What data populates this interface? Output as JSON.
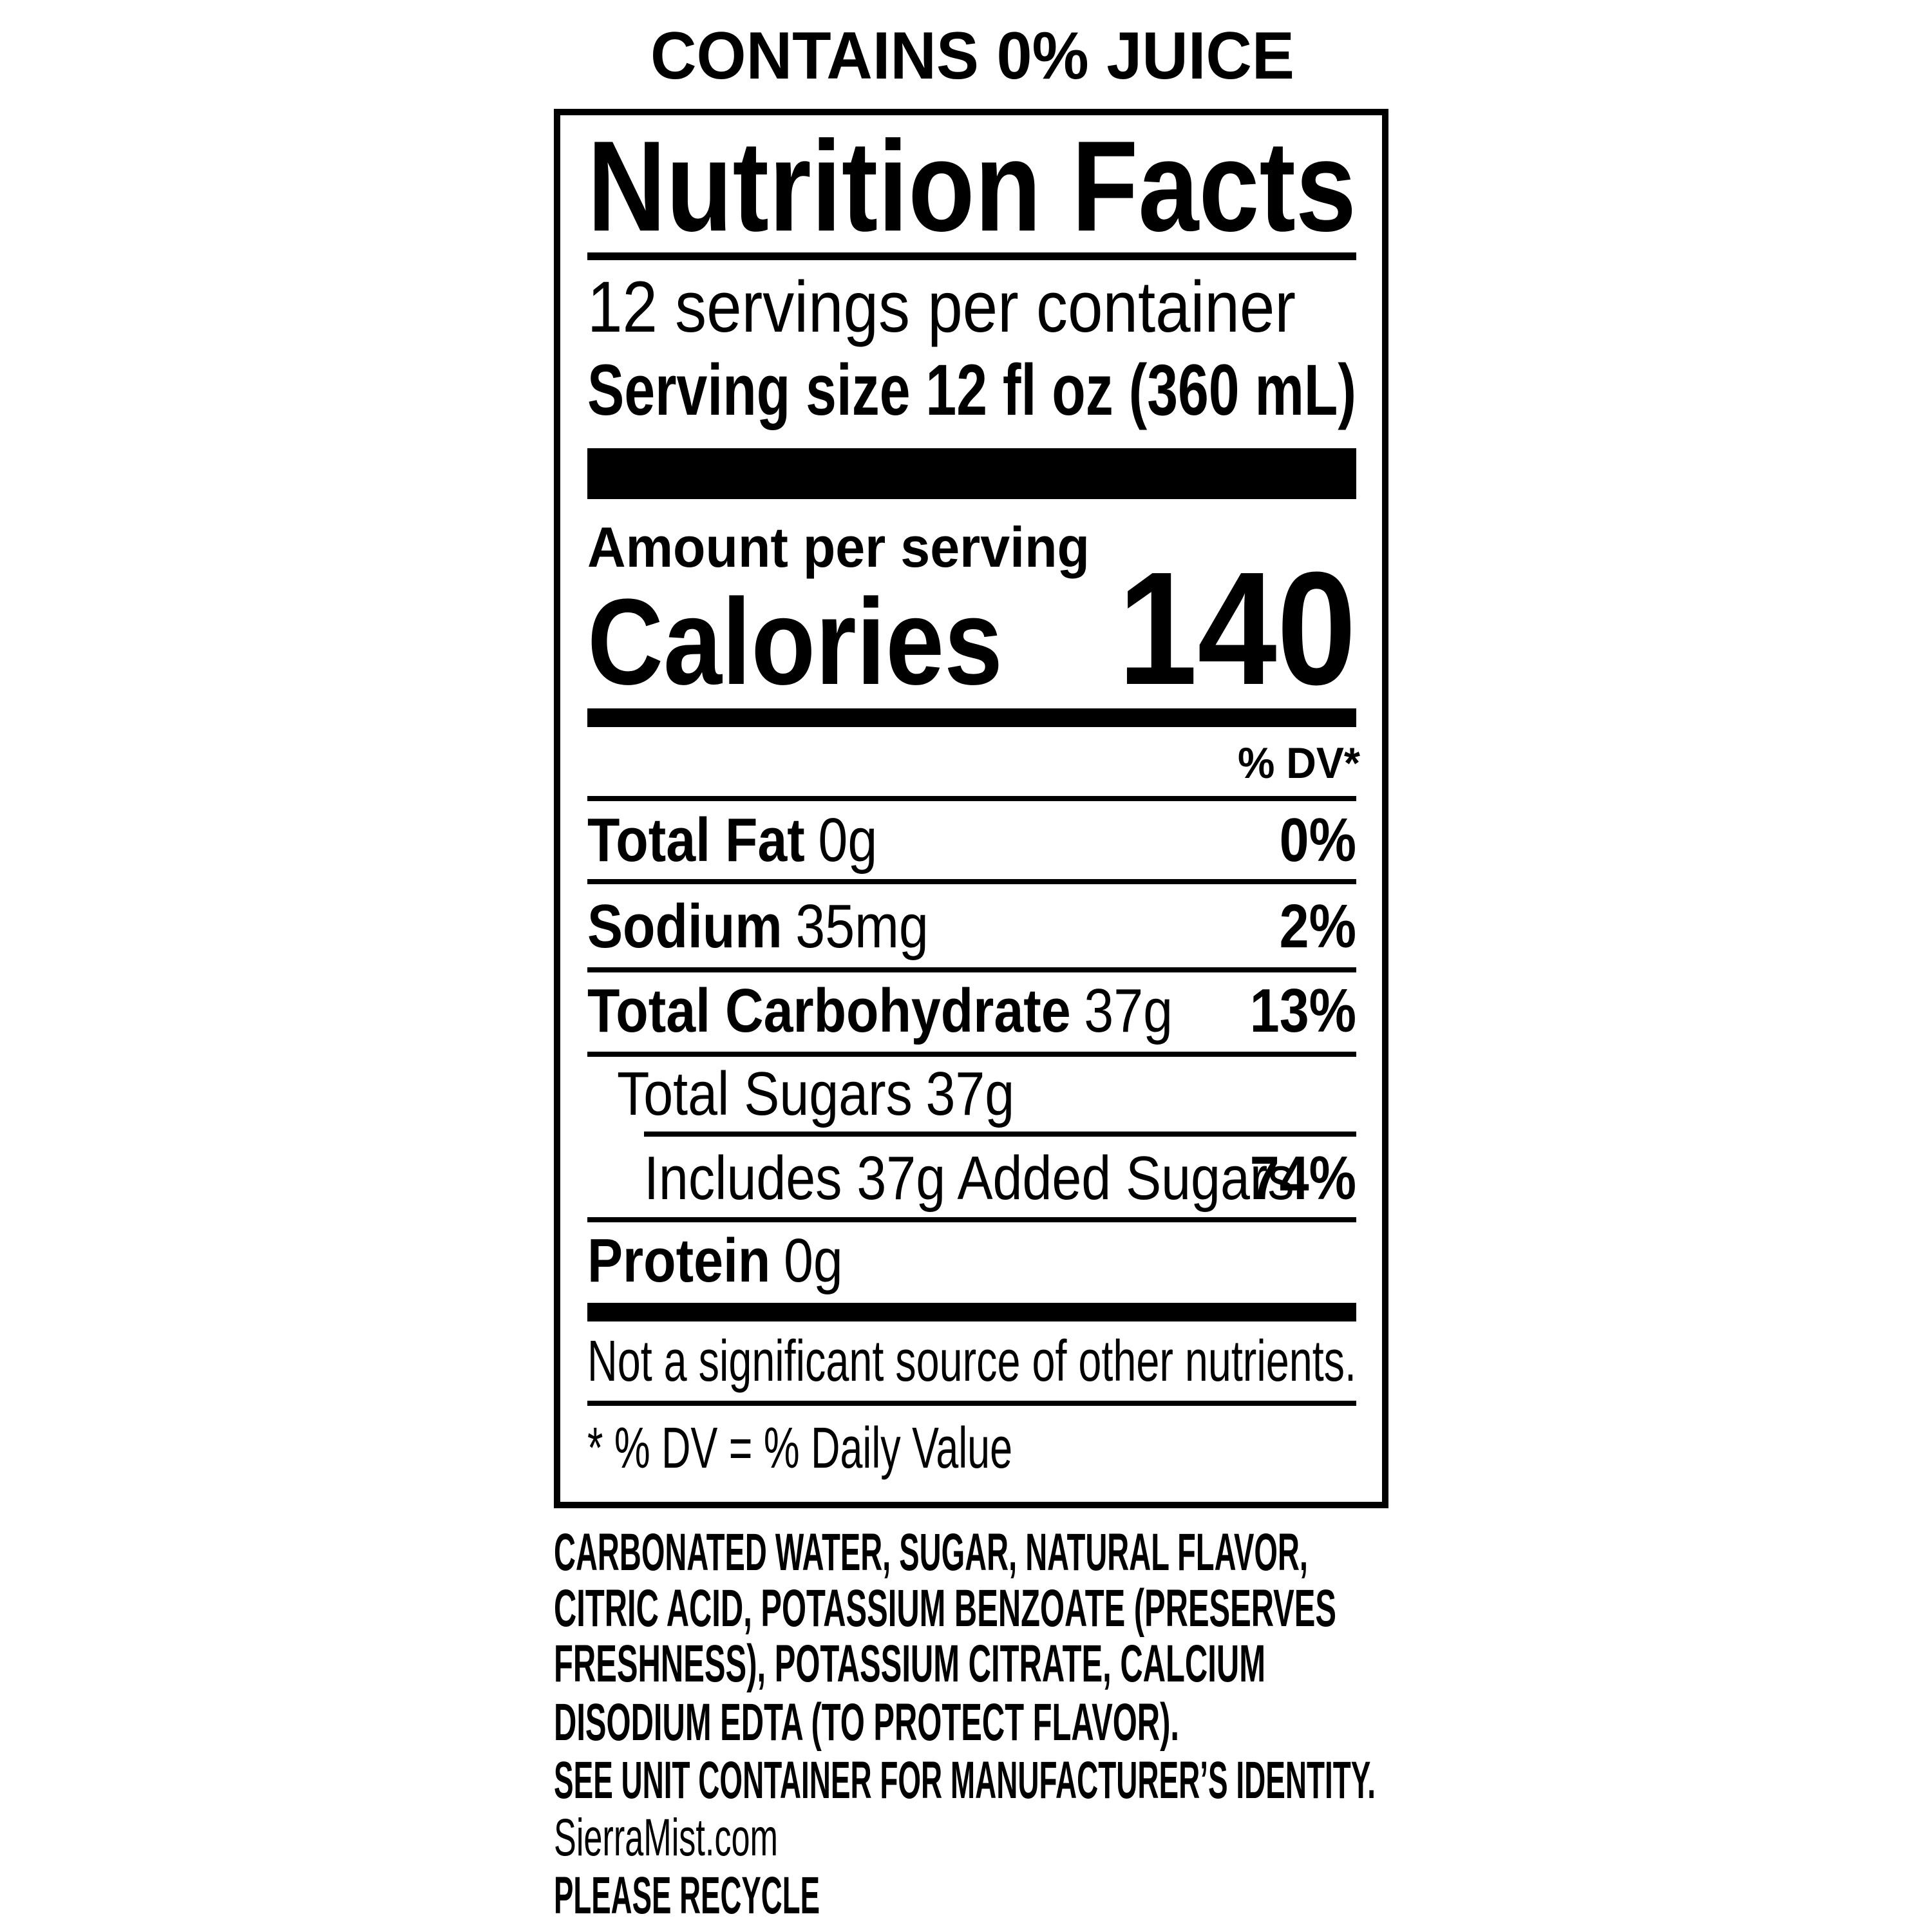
{
  "header": "CONTAINS 0% JUICE",
  "label": {
    "title": "Nutrition Facts",
    "servings_per_container": "12 servings per container",
    "serving_size": "Serving size 12 fl oz (360 mL)",
    "amount_per_serving": "Amount per serving",
    "calories_label": "Calories",
    "calories_value": "140",
    "dv_header": "% DV*",
    "nutrients": [
      {
        "name": "Total Fat",
        "amount": "0g",
        "dv": "0%"
      },
      {
        "name": "Sodium",
        "amount": "35mg",
        "dv": "2%"
      },
      {
        "name": "Total Carbohydrate",
        "amount": "37g",
        "dv": "13%"
      },
      {
        "name": "Total Sugars",
        "amount": "37g"
      },
      {
        "name": "Includes 37g Added Sugars",
        "dv": "74%"
      },
      {
        "name": "Protein",
        "amount": "0g"
      }
    ],
    "note": "Not a significant source of other nutrients.",
    "footnote": "* % DV = % Daily Value"
  },
  "ingredients": [
    "CARBONATED WATER, SUGAR, NATURAL FLAVOR,",
    "CITRIC ACID, POTASSIUM BENZOATE (PRESERVES",
    "FRESHNESS), POTASSIUM CITRATE, CALCIUM",
    "DISODIUM EDTA (TO PROTECT FLAVOR).",
    "SEE UNIT CONTAINER FOR MANUFACTURER’S IDENTITY.",
    "SierraMist.com",
    "PLEASE RECYCLE"
  ]
}
